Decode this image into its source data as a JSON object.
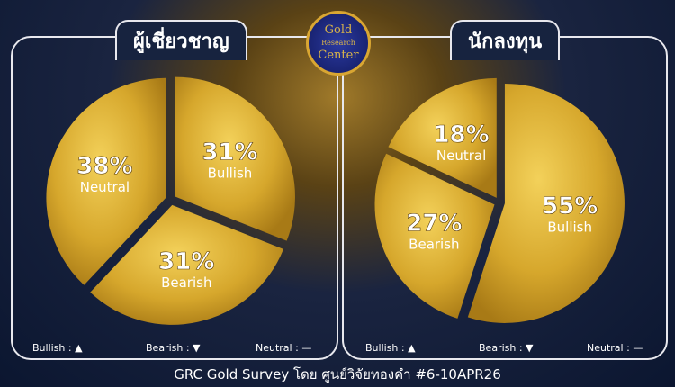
{
  "logo": {
    "line1": "Gold",
    "line2": "Research",
    "line3": "Center"
  },
  "legend": {
    "bullish": "Bullish :",
    "bearish": "Bearish :",
    "neutral": "Neutral :"
  },
  "footer": "GRC Gold Survey โดย ศูนย์วิจัยทองคำ #6-10APR26",
  "colors": {
    "gold": "#d9ab2e",
    "panel_border": "#e8e8ee",
    "background": "#0b1630"
  },
  "chart_data": [
    {
      "type": "pie",
      "title": "ผู้เชี่ยวชาญ",
      "categories": [
        "Bullish",
        "Bearish",
        "Neutral"
      ],
      "values": [
        31,
        31,
        38
      ],
      "labels": [
        "31%",
        "31%",
        "38%"
      ]
    },
    {
      "type": "pie",
      "title": "นักลงทุน",
      "categories": [
        "Bullish",
        "Bearish",
        "Neutral"
      ],
      "values": [
        55,
        27,
        18
      ],
      "labels": [
        "55%",
        "27%",
        "18%"
      ]
    }
  ]
}
